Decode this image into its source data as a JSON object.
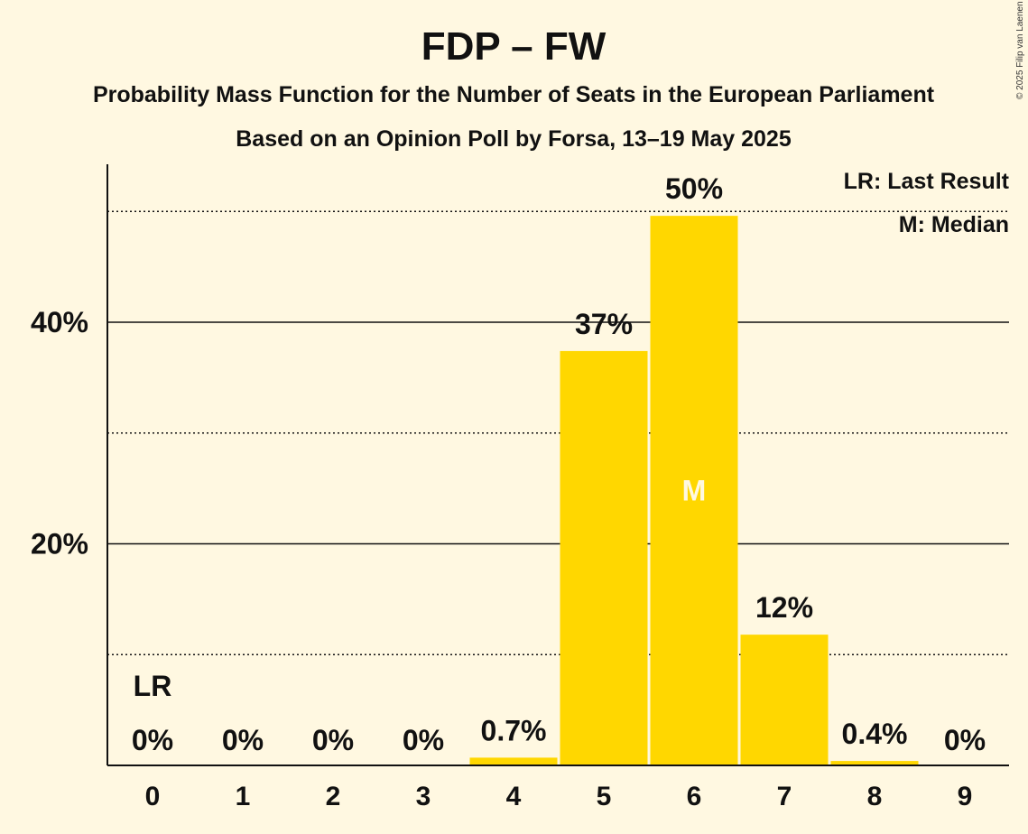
{
  "chart_data": {
    "type": "bar",
    "title": "FDP – FW",
    "subtitle": "Probability Mass Function for the Number of Seats in the European Parliament",
    "subtitle2": "Based on an Opinion Poll by Forsa, 13–19 May 2025",
    "copyright": "© 2025 Filip van Laenen",
    "categories": [
      "0",
      "1",
      "2",
      "3",
      "4",
      "5",
      "6",
      "7",
      "8",
      "9"
    ],
    "values": [
      0,
      0,
      0,
      0,
      0.7,
      37.4,
      49.6,
      11.8,
      0.4,
      0
    ],
    "value_labels": [
      "0%",
      "0%",
      "0%",
      "0%",
      "0.7%",
      "37%",
      "50%",
      "12%",
      "0.4%",
      "0%"
    ],
    "ylim": [
      0,
      54
    ],
    "y_ticks": [
      {
        "value": 20,
        "label": "20%"
      },
      {
        "value": 40,
        "label": "40%"
      }
    ],
    "dotted_lines": [
      10,
      30,
      50
    ],
    "bar_color": "#ffd700",
    "last_result": {
      "seat": "0",
      "label": "LR"
    },
    "median": {
      "seat": "6",
      "label": "M"
    },
    "legend": [
      "LR: Last Result",
      "M: Median"
    ]
  }
}
